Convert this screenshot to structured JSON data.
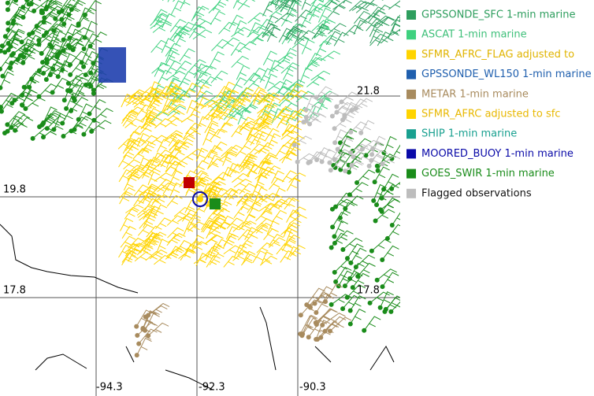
{
  "grid_labels": {
    "lat": [
      {
        "text": "19.8"
      },
      {
        "text": "17.8"
      },
      {
        "text": "17.8"
      },
      {
        "text": "21.8"
      }
    ],
    "lon": [
      {
        "text": "-94.3"
      },
      {
        "text": "-92.3"
      },
      {
        "text": "-90.3"
      }
    ]
  },
  "legend": {
    "items": [
      {
        "label": "GPSSONDE_SFC 1-min marine",
        "color": "#2e9e5e",
        "text_color": "#2e9e5e"
      },
      {
        "label": "ASCAT 1-min marine",
        "color": "#3fd17f",
        "text_color": "#3fc07a"
      },
      {
        "label": "SFMR_AFRC_FLAG adjusted to",
        "color": "#ffd400",
        "text_color": "#e0b400"
      },
      {
        "label": "GPSSONDE_WL150 1-min marine",
        "color": "#1f5fae",
        "text_color": "#1f5fae"
      },
      {
        "label": "METAR 1-min marine",
        "color": "#a88b5e",
        "text_color": "#a88b5e"
      },
      {
        "label": "SFMR_AFRC adjusted to sfc",
        "color": "#ffd400",
        "text_color": "#e8b800"
      },
      {
        "label": "SHIP 1-min marine",
        "color": "#19a090",
        "text_color": "#19a090"
      },
      {
        "label": "MOORED_BUOY 1-min marine",
        "color": "#0a0aa8",
        "text_color": "#0a0aa8"
      },
      {
        "label": "GOES_SWIR 1-min marine",
        "color": "#1a8c1a",
        "text_color": "#1a8c1a"
      },
      {
        "label": "Flagged observations",
        "color": "#bdbdbd",
        "text_color": "#111111"
      }
    ]
  }
}
